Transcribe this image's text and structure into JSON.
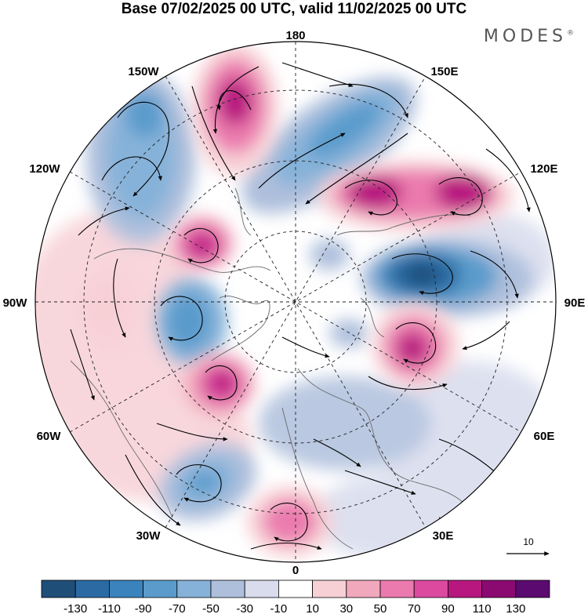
{
  "title": "Base 07/02/2025 00 UTC, valid 11/02/2025 00 UTC",
  "brand": "MODES",
  "brand_mark": "®",
  "longitude_labels": {
    "top": "180",
    "upper_right": "150E",
    "right_high": "120E",
    "right": "90E",
    "right_low": "60E",
    "lower_right": "30E",
    "bottom": "0",
    "lower_left": "30W",
    "left_low": "60W",
    "left": "90W",
    "left_high": "120W",
    "upper_left": "150W"
  },
  "reference_vector": {
    "label": "10"
  },
  "colorbar": {
    "ticks": [
      "-130",
      "-110",
      "-90",
      "-70",
      "-50",
      "-30",
      "-10",
      "10",
      "30",
      "50",
      "70",
      "90",
      "110",
      "130"
    ],
    "colors": [
      "#1f4e79",
      "#2c6aa3",
      "#3a83bd",
      "#5a9bcc",
      "#86b2d9",
      "#aebfdc",
      "#d8dced",
      "#ffffff",
      "#f7d0d6",
      "#f1a8bc",
      "#eb7aae",
      "#dc4aa0",
      "#b8177f",
      "#8b0a72",
      "#5b0a70"
    ]
  }
}
